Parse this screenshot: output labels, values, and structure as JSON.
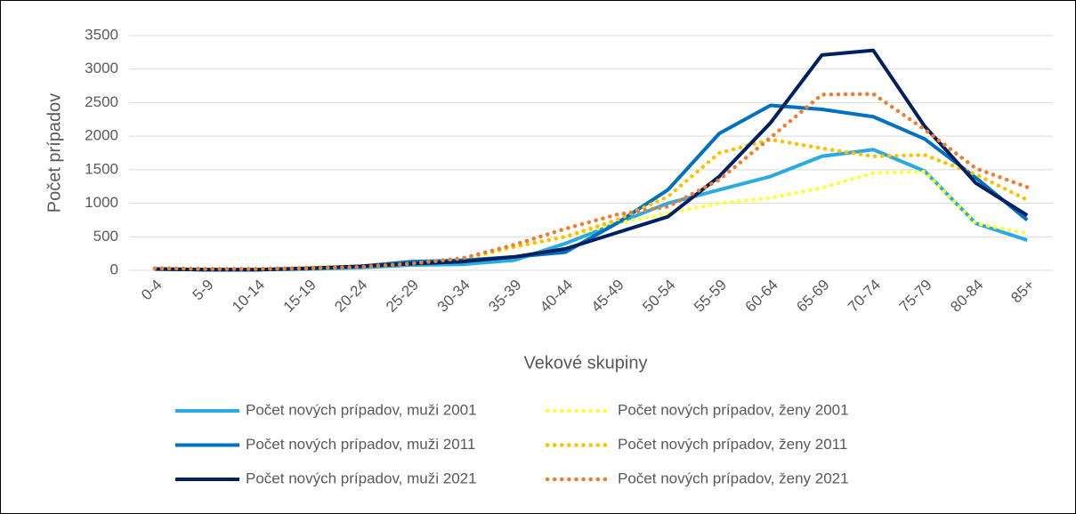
{
  "chart_data": {
    "type": "line",
    "x_label": "Vekové skupiny",
    "y_label": "Počet prípadov",
    "categories": [
      "0-4",
      "5-9",
      "10-14",
      "15-19",
      "20-24",
      "25-29",
      "30-34",
      "35-39",
      "40-44",
      "45-49",
      "50-54",
      "55-59",
      "60-64",
      "65-69",
      "70-74",
      "75-79",
      "80-84",
      "85+"
    ],
    "ylim": [
      0,
      3500
    ],
    "yticks": [
      0,
      500,
      1000,
      1500,
      2000,
      2500,
      3000,
      3500
    ],
    "grid": true,
    "legend": "bottom",
    "series": [
      {
        "name": "Počet nových prípadov, muži 2001",
        "color": "#29abe2",
        "style": "solid",
        "values": [
          20,
          10,
          10,
          20,
          40,
          80,
          90,
          150,
          400,
          700,
          1000,
          1200,
          1400,
          1700,
          1800,
          1480,
          700,
          450
        ]
      },
      {
        "name": "Počet nových prípadov, ženy 2001",
        "color": "#ffff33",
        "style": "dotted",
        "values": [
          30,
          20,
          20,
          30,
          50,
          100,
          150,
          350,
          500,
          700,
          850,
          1000,
          1080,
          1230,
          1450,
          1470,
          700,
          550
        ]
      },
      {
        "name": "Počet nových prípadov, muži 2011",
        "color": "#0070c0",
        "style": "solid",
        "values": [
          20,
          10,
          10,
          30,
          60,
          130,
          150,
          200,
          270,
          700,
          1200,
          2040,
          2460,
          2400,
          2290,
          1960,
          1380,
          750
        ]
      },
      {
        "name": "Počet nových prípadov, ženy 2011",
        "color": "#ffc000",
        "style": "dotted",
        "values": [
          30,
          20,
          20,
          40,
          60,
          100,
          180,
          350,
          500,
          750,
          1100,
          1750,
          1950,
          1820,
          1700,
          1720,
          1430,
          1050
        ]
      },
      {
        "name": "Počet nových prípadov, muži 2021",
        "color": "#002060",
        "style": "solid",
        "values": [
          20,
          10,
          10,
          30,
          60,
          100,
          130,
          200,
          320,
          560,
          800,
          1400,
          2200,
          3210,
          3280,
          2150,
          1300,
          820
        ]
      },
      {
        "name": "Počet nových prípadov, ženy 2021",
        "color": "#ed7d31",
        "style": "dotted",
        "values": [
          30,
          20,
          20,
          30,
          50,
          100,
          180,
          380,
          620,
          830,
          950,
          1350,
          1980,
          2620,
          2630,
          2100,
          1520,
          1240
        ]
      }
    ]
  }
}
